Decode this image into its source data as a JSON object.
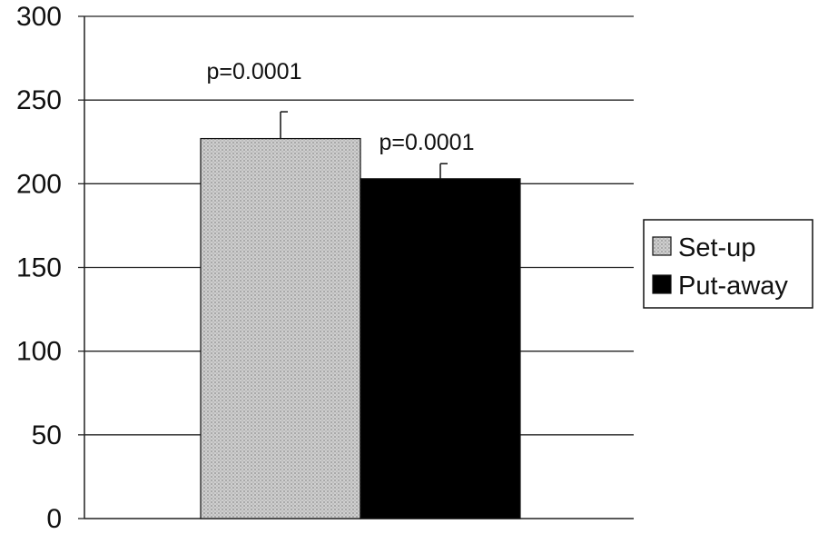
{
  "chart_data": {
    "type": "bar",
    "title": "",
    "xlabel": "",
    "ylabel": "",
    "ylim": [
      0,
      300
    ],
    "yticks": [
      0,
      50,
      100,
      150,
      200,
      250,
      300
    ],
    "grid": true,
    "legend_position": "right",
    "series": [
      {
        "name": "Set-up",
        "value": 227,
        "error": 16,
        "annotation": "p=0.0001",
        "color": "#c4c4c4",
        "pattern": "crosshatch-gray"
      },
      {
        "name": "Put-away",
        "value": 203,
        "error": 9,
        "annotation": "p=0.0001",
        "color": "#000000",
        "pattern": "solid"
      }
    ]
  }
}
